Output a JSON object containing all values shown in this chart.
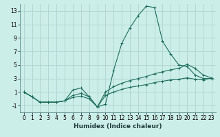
{
  "title": "",
  "xlabel": "Humidex (Indice chaleur)",
  "bg_color": "#cceee8",
  "grid_color": "#aacccc",
  "line_color": "#1a6b5a",
  "xlim": [
    -0.5,
    23.5
  ],
  "ylim": [
    -2.0,
    14.0
  ],
  "xticks": [
    0,
    1,
    2,
    3,
    4,
    5,
    6,
    7,
    8,
    9,
    10,
    11,
    12,
    13,
    14,
    15,
    16,
    17,
    18,
    19,
    20,
    21,
    22,
    23
  ],
  "yticks": [
    -1,
    1,
    3,
    5,
    7,
    9,
    11,
    13
  ],
  "series1_x": [
    0,
    1,
    2,
    3,
    4,
    5,
    6,
    7,
    8,
    9,
    10,
    11,
    12,
    13,
    14,
    15,
    16,
    17,
    18,
    19,
    20,
    21,
    22,
    23
  ],
  "series1_y": [
    1.0,
    0.3,
    -0.5,
    -0.5,
    -0.5,
    -0.3,
    1.3,
    1.6,
    0.3,
    -1.2,
    -0.8,
    4.2,
    8.2,
    10.5,
    12.3,
    13.7,
    13.5,
    8.5,
    6.6,
    5.0,
    4.8,
    3.5,
    3.0,
    3.0
  ],
  "series2_x": [
    0,
    1,
    2,
    3,
    4,
    5,
    6,
    7,
    8,
    9,
    10,
    11,
    12,
    13,
    14,
    15,
    16,
    17,
    18,
    19,
    20,
    21,
    22,
    23
  ],
  "series2_y": [
    1.0,
    0.3,
    -0.5,
    -0.5,
    -0.5,
    -0.3,
    0.5,
    0.8,
    0.3,
    -1.2,
    1.0,
    1.8,
    2.3,
    2.7,
    3.0,
    3.3,
    3.7,
    4.0,
    4.3,
    4.5,
    5.1,
    4.5,
    3.5,
    3.1
  ],
  "series3_x": [
    0,
    1,
    2,
    3,
    4,
    5,
    6,
    7,
    8,
    9,
    10,
    11,
    12,
    13,
    14,
    15,
    16,
    17,
    18,
    19,
    20,
    21,
    22,
    23
  ],
  "series3_y": [
    1.0,
    0.3,
    -0.5,
    -0.5,
    -0.5,
    -0.3,
    0.2,
    0.4,
    0.0,
    -1.2,
    0.5,
    1.0,
    1.4,
    1.7,
    1.9,
    2.1,
    2.4,
    2.6,
    2.8,
    2.9,
    3.1,
    2.9,
    2.8,
    3.1
  ],
  "xlabel_color": "#1a3a3a",
  "xlabel_fontsize": 6.5,
  "tick_fontsize": 5.5,
  "marker_size": 2.5,
  "line_width": 0.8
}
